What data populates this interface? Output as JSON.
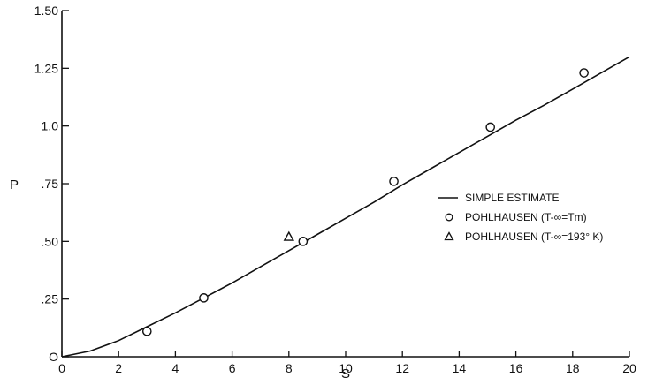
{
  "chart_data": {
    "type": "line",
    "xlabel": "S",
    "ylabel": "P",
    "xlim": [
      0,
      20
    ],
    "ylim": [
      0,
      1.5
    ],
    "x_ticks": [
      0,
      2,
      4,
      6,
      8,
      10,
      12,
      14,
      16,
      18,
      20
    ],
    "x_tick_labels": [
      "0",
      "2",
      "4",
      "6",
      "8",
      "10",
      "12",
      "14",
      "16",
      "18",
      "20"
    ],
    "y_ticks": [
      0,
      0.25,
      0.5,
      0.75,
      1.0,
      1.25,
      1.5
    ],
    "y_tick_labels": [
      "O",
      ".25",
      ".50",
      ".75",
      "1.0",
      "1.25",
      "1.50"
    ],
    "grid": false,
    "legend_position": "right-middle",
    "series": [
      {
        "name": "SIMPLE ESTIMATE",
        "type": "line",
        "x": [
          0,
          1,
          2,
          3,
          4,
          5,
          6,
          7,
          8,
          9,
          10,
          11,
          12,
          13,
          14,
          15,
          16,
          17,
          18,
          19,
          20
        ],
        "y": [
          0,
          0.025,
          0.07,
          0.13,
          0.19,
          0.255,
          0.32,
          0.39,
          0.46,
          0.53,
          0.6,
          0.67,
          0.745,
          0.815,
          0.885,
          0.955,
          1.025,
          1.09,
          1.16,
          1.23,
          1.3
        ]
      },
      {
        "name": "POHLHAUSEN (T-∞=Tm)",
        "type": "scatter",
        "marker": "circle",
        "x": [
          3.0,
          5.0,
          8.5,
          11.7,
          15.1,
          18.4
        ],
        "y": [
          0.11,
          0.255,
          0.5,
          0.76,
          0.995,
          1.23
        ]
      },
      {
        "name": "POHLHAUSEN (T-∞=193° K)",
        "type": "scatter",
        "marker": "triangle",
        "x": [
          8.0
        ],
        "y": [
          0.52
        ]
      }
    ],
    "colors": {
      "ink": "#111111",
      "background": "#ffffff"
    }
  }
}
